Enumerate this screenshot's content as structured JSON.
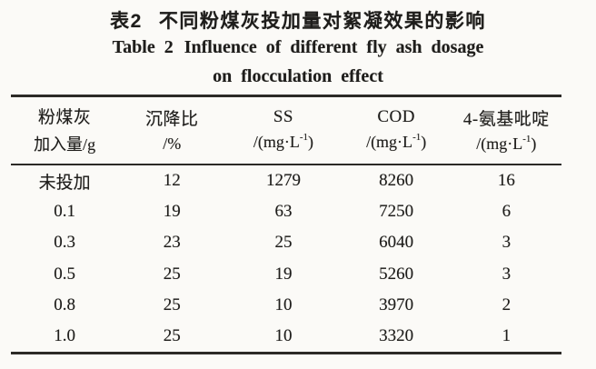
{
  "page": {
    "title_cn_label": "表2",
    "title_cn_text": "不同粉煤灰投加量对絮凝效果的影响",
    "title_en_label": "Table 2",
    "title_en_text": "Influence of different fly ash dosage",
    "title_en_line2": "on flocculation effect"
  },
  "colors": {
    "background": "#fbfaf7",
    "text": "#1e1d1b",
    "rule": "#2c2a27"
  },
  "chart_data": {
    "type": "table",
    "title": "表2 不同粉煤灰投加量对絮凝效果的影响 (Table 2 Influence of different fly ash dosage on flocculation effect)",
    "columns": [
      {
        "line1": "粉煤灰",
        "unit_pre": "加入量/g",
        "unit_sup": "",
        "unit_post": ""
      },
      {
        "line1": "沉降比",
        "unit_pre": "/%",
        "unit_sup": "",
        "unit_post": ""
      },
      {
        "line1": "SS",
        "unit_pre": "/(mg·L",
        "unit_sup": "-1",
        "unit_post": ")"
      },
      {
        "line1": "COD",
        "unit_pre": "/(mg·L",
        "unit_sup": "-1",
        "unit_post": ")"
      },
      {
        "line1": "4-氨基吡啶",
        "unit_pre": "/(mg·L",
        "unit_sup": "-1",
        "unit_post": ")"
      }
    ],
    "rows": [
      [
        "未投加",
        "12",
        "1279",
        "8260",
        "16"
      ],
      [
        "0.1",
        "19",
        "63",
        "7250",
        "6"
      ],
      [
        "0.3",
        "23",
        "25",
        "6040",
        "3"
      ],
      [
        "0.5",
        "25",
        "19",
        "5260",
        "3"
      ],
      [
        "0.8",
        "25",
        "10",
        "3970",
        "2"
      ],
      [
        "1.0",
        "25",
        "10",
        "3320",
        "1"
      ]
    ]
  }
}
